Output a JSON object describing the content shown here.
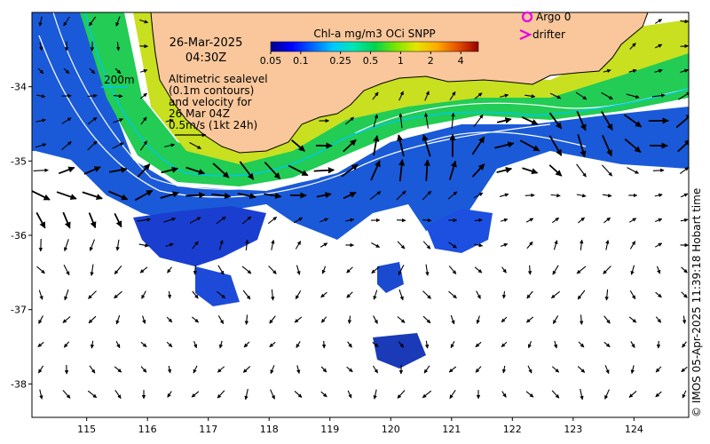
{
  "datetime": {
    "date": "26-Mar-2025",
    "time": "04:30Z"
  },
  "colorbar": {
    "title": "Chl-a mg/m3 OCi SNPP",
    "tick_labels": [
      "0.05",
      "0.1",
      "0.25",
      "0.5",
      "1",
      "2",
      "4"
    ],
    "tick_values": [
      0.05,
      0.1,
      0.25,
      0.5,
      1,
      2,
      4
    ],
    "range": [
      0.05,
      6
    ],
    "scale": "log",
    "colors": [
      "#00008c",
      "#0000ff",
      "#0064ff",
      "#00c8ff",
      "#00e6b4",
      "#00d250",
      "#78e600",
      "#e6e600",
      "#ffaa00",
      "#e65000",
      "#960000"
    ]
  },
  "legend": {
    "argo_label": "Argo 0",
    "drifter_label": "drifter",
    "contour_label": "200m",
    "info_lines": [
      "Altimetric sealevel",
      "(0.1m contours)",
      "and velocity for",
      "26 Mar 04Z",
      "0.5m/s (1kt 24h)"
    ]
  },
  "axes": {
    "lon_ticks": [
      "115",
      "116",
      "117",
      "118",
      "119",
      "120",
      "121",
      "122",
      "123",
      "124"
    ],
    "lat_ticks": [
      "-34",
      "-35",
      "-36",
      "-37",
      "-38"
    ],
    "lon_range": [
      114.1,
      124.9
    ],
    "lat_range": [
      -38.45,
      -33.0
    ]
  },
  "colors": {
    "land": "#f9c79b",
    "coast": "#000000",
    "contour": "#ffffff",
    "contour_200m": "#00c8e6",
    "arrow": "#000000",
    "argo": "#e600e6",
    "drifter": "#e600e6"
  },
  "credit": "© IMOS 05-Apr-2025 11:39:18 Hobart time"
}
